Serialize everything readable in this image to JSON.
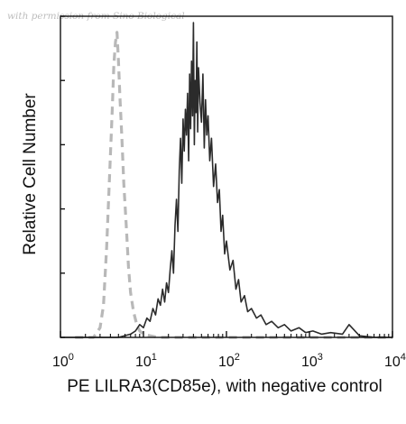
{
  "watermark": "with permission from Sino Biological",
  "chart_data": {
    "type": "line",
    "title": "",
    "xlabel": "PE LILRA3(CD85e), with negative control",
    "ylabel": "Relative Cell Number",
    "xscale": "log",
    "xlim": [
      1,
      10000
    ],
    "ylim": [
      0,
      100
    ],
    "x_ticks": [
      {
        "value": 1,
        "base": "10",
        "exp": "0"
      },
      {
        "value": 10,
        "base": "10",
        "exp": "1"
      },
      {
        "value": 100,
        "base": "10",
        "exp": "2"
      },
      {
        "value": 1000,
        "base": "10",
        "exp": "3"
      },
      {
        "value": 10000,
        "base": "10",
        "exp": "4"
      }
    ],
    "y_ticks": [
      0,
      20,
      40,
      60,
      80,
      100
    ],
    "grid": false,
    "legend": "none",
    "series": [
      {
        "style": "dashed",
        "color": "#b8b8b8",
        "x": [
          1.5,
          2.0,
          2.5,
          3.0,
          3.3,
          3.6,
          3.9,
          4.2,
          4.4,
          4.6,
          4.8,
          5.0,
          5.2,
          5.5,
          5.8,
          6.2,
          6.6,
          7.0,
          7.6,
          8.3,
          9.0,
          10.0,
          12.0,
          15.0,
          25.0,
          60.0,
          200.0,
          1000.0,
          10000.0
        ],
        "y": [
          0,
          0,
          0,
          3,
          10,
          28,
          50,
          70,
          85,
          92,
          95,
          86,
          75,
          62,
          48,
          35,
          22,
          14,
          8,
          4,
          2,
          1,
          0.5,
          0,
          0,
          0,
          0,
          0,
          0
        ]
      },
      {
        "style": "solid",
        "color": "#2b2b2b",
        "x": [
          1.0,
          5.0,
          7.0,
          8.0,
          9.0,
          10.0,
          11.0,
          12.0,
          13.0,
          14.0,
          15.0,
          16.0,
          17.0,
          18.0,
          19.0,
          20.0,
          21.0,
          22.0,
          23.0,
          24.0,
          25.0,
          26.0,
          27.0,
          28.0,
          29.0,
          30.0,
          31.0,
          32.0,
          33.0,
          34.0,
          35.0,
          36.0,
          37.0,
          38.0,
          39.0,
          40.0,
          41.0,
          42.0,
          43.0,
          44.0,
          45.0,
          46.0,
          48.0,
          50.0,
          52.0,
          54.0,
          56.0,
          58.0,
          60.0,
          63.0,
          66.0,
          70.0,
          74.0,
          78.0,
          82.0,
          86.0,
          90.0,
          95.0,
          100.0,
          110.0,
          120.0,
          130.0,
          140.0,
          150.0,
          165.0,
          180.0,
          200.0,
          230.0,
          260.0,
          300.0,
          350.0,
          420.0,
          500.0,
          600.0,
          750.0,
          900.0,
          1100.0,
          1400.0,
          1800.0,
          2500.0,
          3000.0,
          4000.0,
          6000.0,
          10000.0
        ],
        "y": [
          0,
          0,
          1,
          2,
          4,
          3,
          6,
          5,
          9,
          7,
          12,
          10,
          15,
          11,
          17,
          14,
          21,
          27,
          20,
          35,
          43,
          33,
          52,
          62,
          48,
          68,
          58,
          71,
          63,
          76,
          55,
          82,
          65,
          86,
          69,
          98,
          60,
          80,
          70,
          92,
          64,
          84,
          73,
          67,
          82,
          59,
          74,
          63,
          69,
          55,
          62,
          47,
          54,
          42,
          46,
          33,
          38,
          26,
          30,
          21,
          24,
          15,
          18,
          11,
          13,
          8,
          9,
          6,
          7,
          4,
          5,
          3,
          4,
          2,
          3,
          1.5,
          2,
          1,
          1.5,
          1,
          4,
          0.5,
          0,
          0
        ]
      }
    ]
  }
}
